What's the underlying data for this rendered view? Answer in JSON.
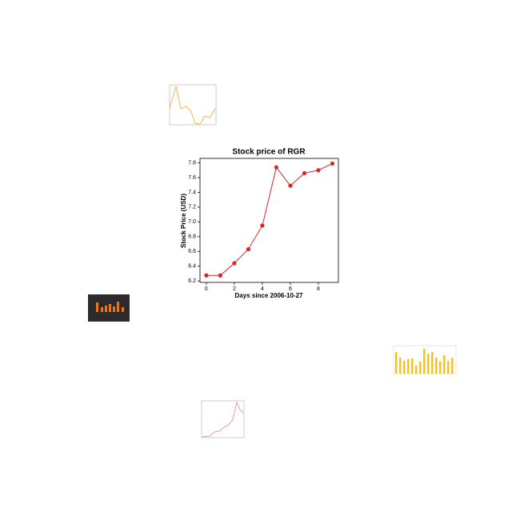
{
  "chart_data": {
    "type": "line",
    "title": "Stock price of RGR",
    "x_label": "Days since 2006-10-27",
    "y_label": "Stock Price (USD)",
    "x": [
      0,
      1,
      2,
      3,
      4,
      5,
      6,
      7,
      8,
      9
    ],
    "series": [
      {
        "color": "#d62728",
        "values": [
          6.275,
          6.275,
          6.44,
          6.63,
          6.95,
          7.74,
          7.49,
          7.66,
          7.7,
          7.79
        ]
      }
    ],
    "xlim": [
      -0.45,
      9.43
    ],
    "ylim": [
      6.18,
      7.86
    ],
    "xticks": [
      0,
      2,
      4,
      6,
      8
    ],
    "yticks": [
      6.2,
      6.4,
      6.6,
      6.8,
      {
        "value": 7,
        "label": "7.0"
      },
      7.2,
      7.4,
      7.6,
      7.8
    ]
  }
}
